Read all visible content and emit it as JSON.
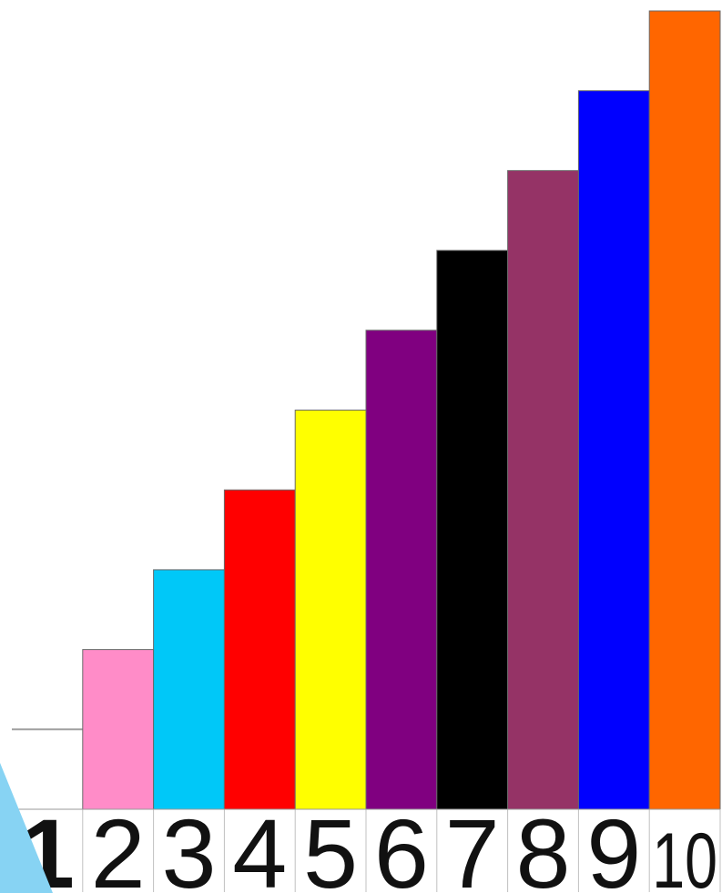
{
  "chart_data": {
    "type": "bar",
    "categories": [
      "1",
      "2",
      "3",
      "4",
      "5",
      "6",
      "7",
      "8",
      "9",
      "10"
    ],
    "values": [
      1,
      2,
      3,
      4,
      5,
      6,
      7,
      8,
      9,
      10
    ],
    "colors": [
      "#a0a0a0",
      "#ff8cc8",
      "#00c8f8",
      "#ff0000",
      "#ffff00",
      "#800080",
      "#000000",
      "#953366",
      "#0000ff",
      "#ff6600"
    ],
    "title": "",
    "xlabel": "",
    "ylabel": "",
    "ylim": [
      0,
      10
    ],
    "grid": false,
    "legend": "none"
  },
  "decor": {
    "wedge_color": "#87d3f3"
  }
}
